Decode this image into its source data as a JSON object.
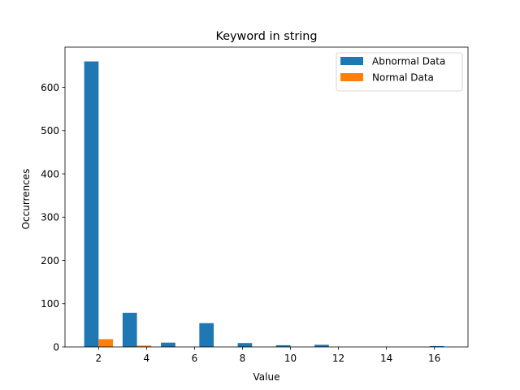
{
  "chart_data": {
    "type": "bar",
    "title": "Keyword in string",
    "xlabel": "Value",
    "ylabel": "Occurrences",
    "xlim": [
      0.6,
      17.4
    ],
    "ylim": [
      0,
      693
    ],
    "xticks": [
      2,
      4,
      6,
      8,
      10,
      12,
      14,
      16
    ],
    "yticks": [
      0,
      100,
      200,
      300,
      400,
      500,
      600
    ],
    "grid": false,
    "legend_position": "top-right",
    "series": [
      {
        "name": "Abnormal Data",
        "color": "#1f77b4",
        "bars": [
          {
            "x_start": 1.4,
            "x_end": 2.0,
            "value": 660
          },
          {
            "x_start": 3.0,
            "x_end": 3.6,
            "value": 79
          },
          {
            "x_start": 4.6,
            "x_end": 5.2,
            "value": 10
          },
          {
            "x_start": 6.2,
            "x_end": 6.8,
            "value": 55
          },
          {
            "x_start": 7.8,
            "x_end": 8.4,
            "value": 9
          },
          {
            "x_start": 9.4,
            "x_end": 10.0,
            "value": 4
          },
          {
            "x_start": 11.0,
            "x_end": 11.6,
            "value": 5
          },
          {
            "x_start": 12.6,
            "x_end": 13.2,
            "value": 0
          },
          {
            "x_start": 14.2,
            "x_end": 14.8,
            "value": 0
          },
          {
            "x_start": 15.8,
            "x_end": 16.4,
            "value": 2
          }
        ]
      },
      {
        "name": "Normal Data",
        "color": "#ff7f0e",
        "bars": [
          {
            "x_start": 2.0,
            "x_end": 2.6,
            "value": 18
          },
          {
            "x_start": 3.6,
            "x_end": 4.2,
            "value": 3
          },
          {
            "x_start": 5.2,
            "x_end": 5.8,
            "value": 0
          },
          {
            "x_start": 6.8,
            "x_end": 7.4,
            "value": 0
          },
          {
            "x_start": 8.4,
            "x_end": 9.0,
            "value": 0
          },
          {
            "x_start": 10.0,
            "x_end": 10.6,
            "value": 0
          },
          {
            "x_start": 11.6,
            "x_end": 12.2,
            "value": 0
          },
          {
            "x_start": 13.2,
            "x_end": 13.8,
            "value": 0
          },
          {
            "x_start": 14.8,
            "x_end": 15.4,
            "value": 0
          },
          {
            "x_start": 16.4,
            "x_end": 17.0,
            "value": 0
          }
        ]
      }
    ]
  }
}
